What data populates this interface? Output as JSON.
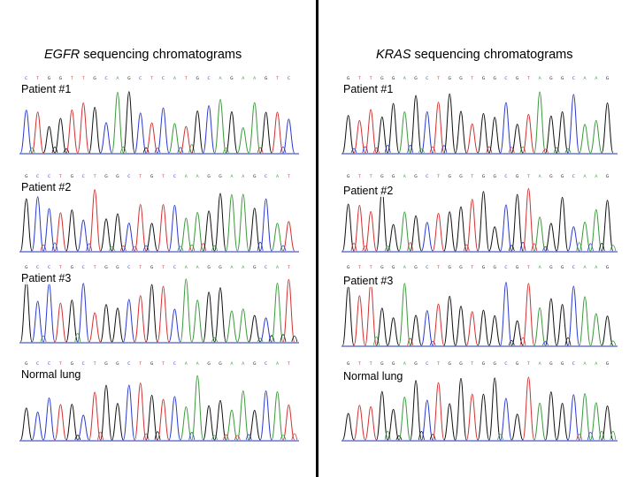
{
  "columns": [
    {
      "gene": "EGFR",
      "title_suffix": " sequencing chromatograms",
      "panels": [
        {
          "label": "Patient #1",
          "bases": "CTGGTTGCAGCTCATGCAGAAGTC"
        },
        {
          "label": "Patient #2",
          "bases": "GCCTGCTGGCTGTCAAGGAAGCAT"
        },
        {
          "label": "Patient #3",
          "bases": "GCCTGCTGGCTGTCAAGGAAGCAT"
        },
        {
          "label": "Normal lung",
          "bases": "GCCTGCTGGCTGTCAAGGAAGCAT"
        }
      ]
    },
    {
      "gene": "KRAS",
      "title_suffix": " sequencing chromatograms",
      "panels": [
        {
          "label": "Patient #1",
          "bases": "GTTGGAGCTGGTGGCGTAGGCAAG"
        },
        {
          "label": "Patient #2",
          "bases": "GTTGGAGCTGGTGGCGTAGGCAAG"
        },
        {
          "label": "Patient #3",
          "bases": "GTTGGAGCTGGTGGCGTAGGCAAG"
        },
        {
          "label": "Normal lung",
          "bases": "GTTGGAGCTGGTGGCGTAGGCAAG"
        }
      ]
    }
  ],
  "base_colors": {
    "A": "#3a9a3a",
    "C": "#2a3ad0",
    "G": "#111111",
    "T": "#d43030"
  }
}
